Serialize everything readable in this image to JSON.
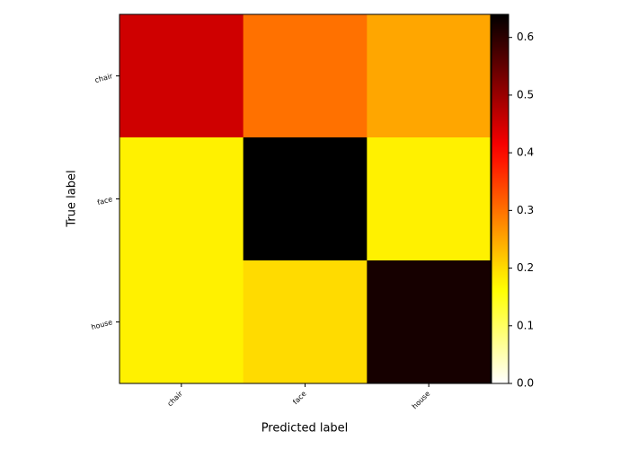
{
  "chart_data": {
    "type": "heatmap",
    "x_label": "Predicted label",
    "y_label": "True label",
    "x_categories": [
      "chair",
      "face",
      "house"
    ],
    "y_categories": [
      "chair",
      "face",
      "house"
    ],
    "values": [
      [
        0.45,
        0.3,
        0.25
      ],
      [
        0.18,
        0.64,
        0.18
      ],
      [
        0.18,
        0.2,
        0.62
      ]
    ],
    "colormap": "hot_r",
    "clim": [
      0,
      0.64
    ],
    "colorbar_ticks": [
      {
        "value": 0,
        "label": "0.0"
      },
      0.1,
      0.2,
      0.3,
      0.4,
      0.5,
      0.6
    ]
  }
}
